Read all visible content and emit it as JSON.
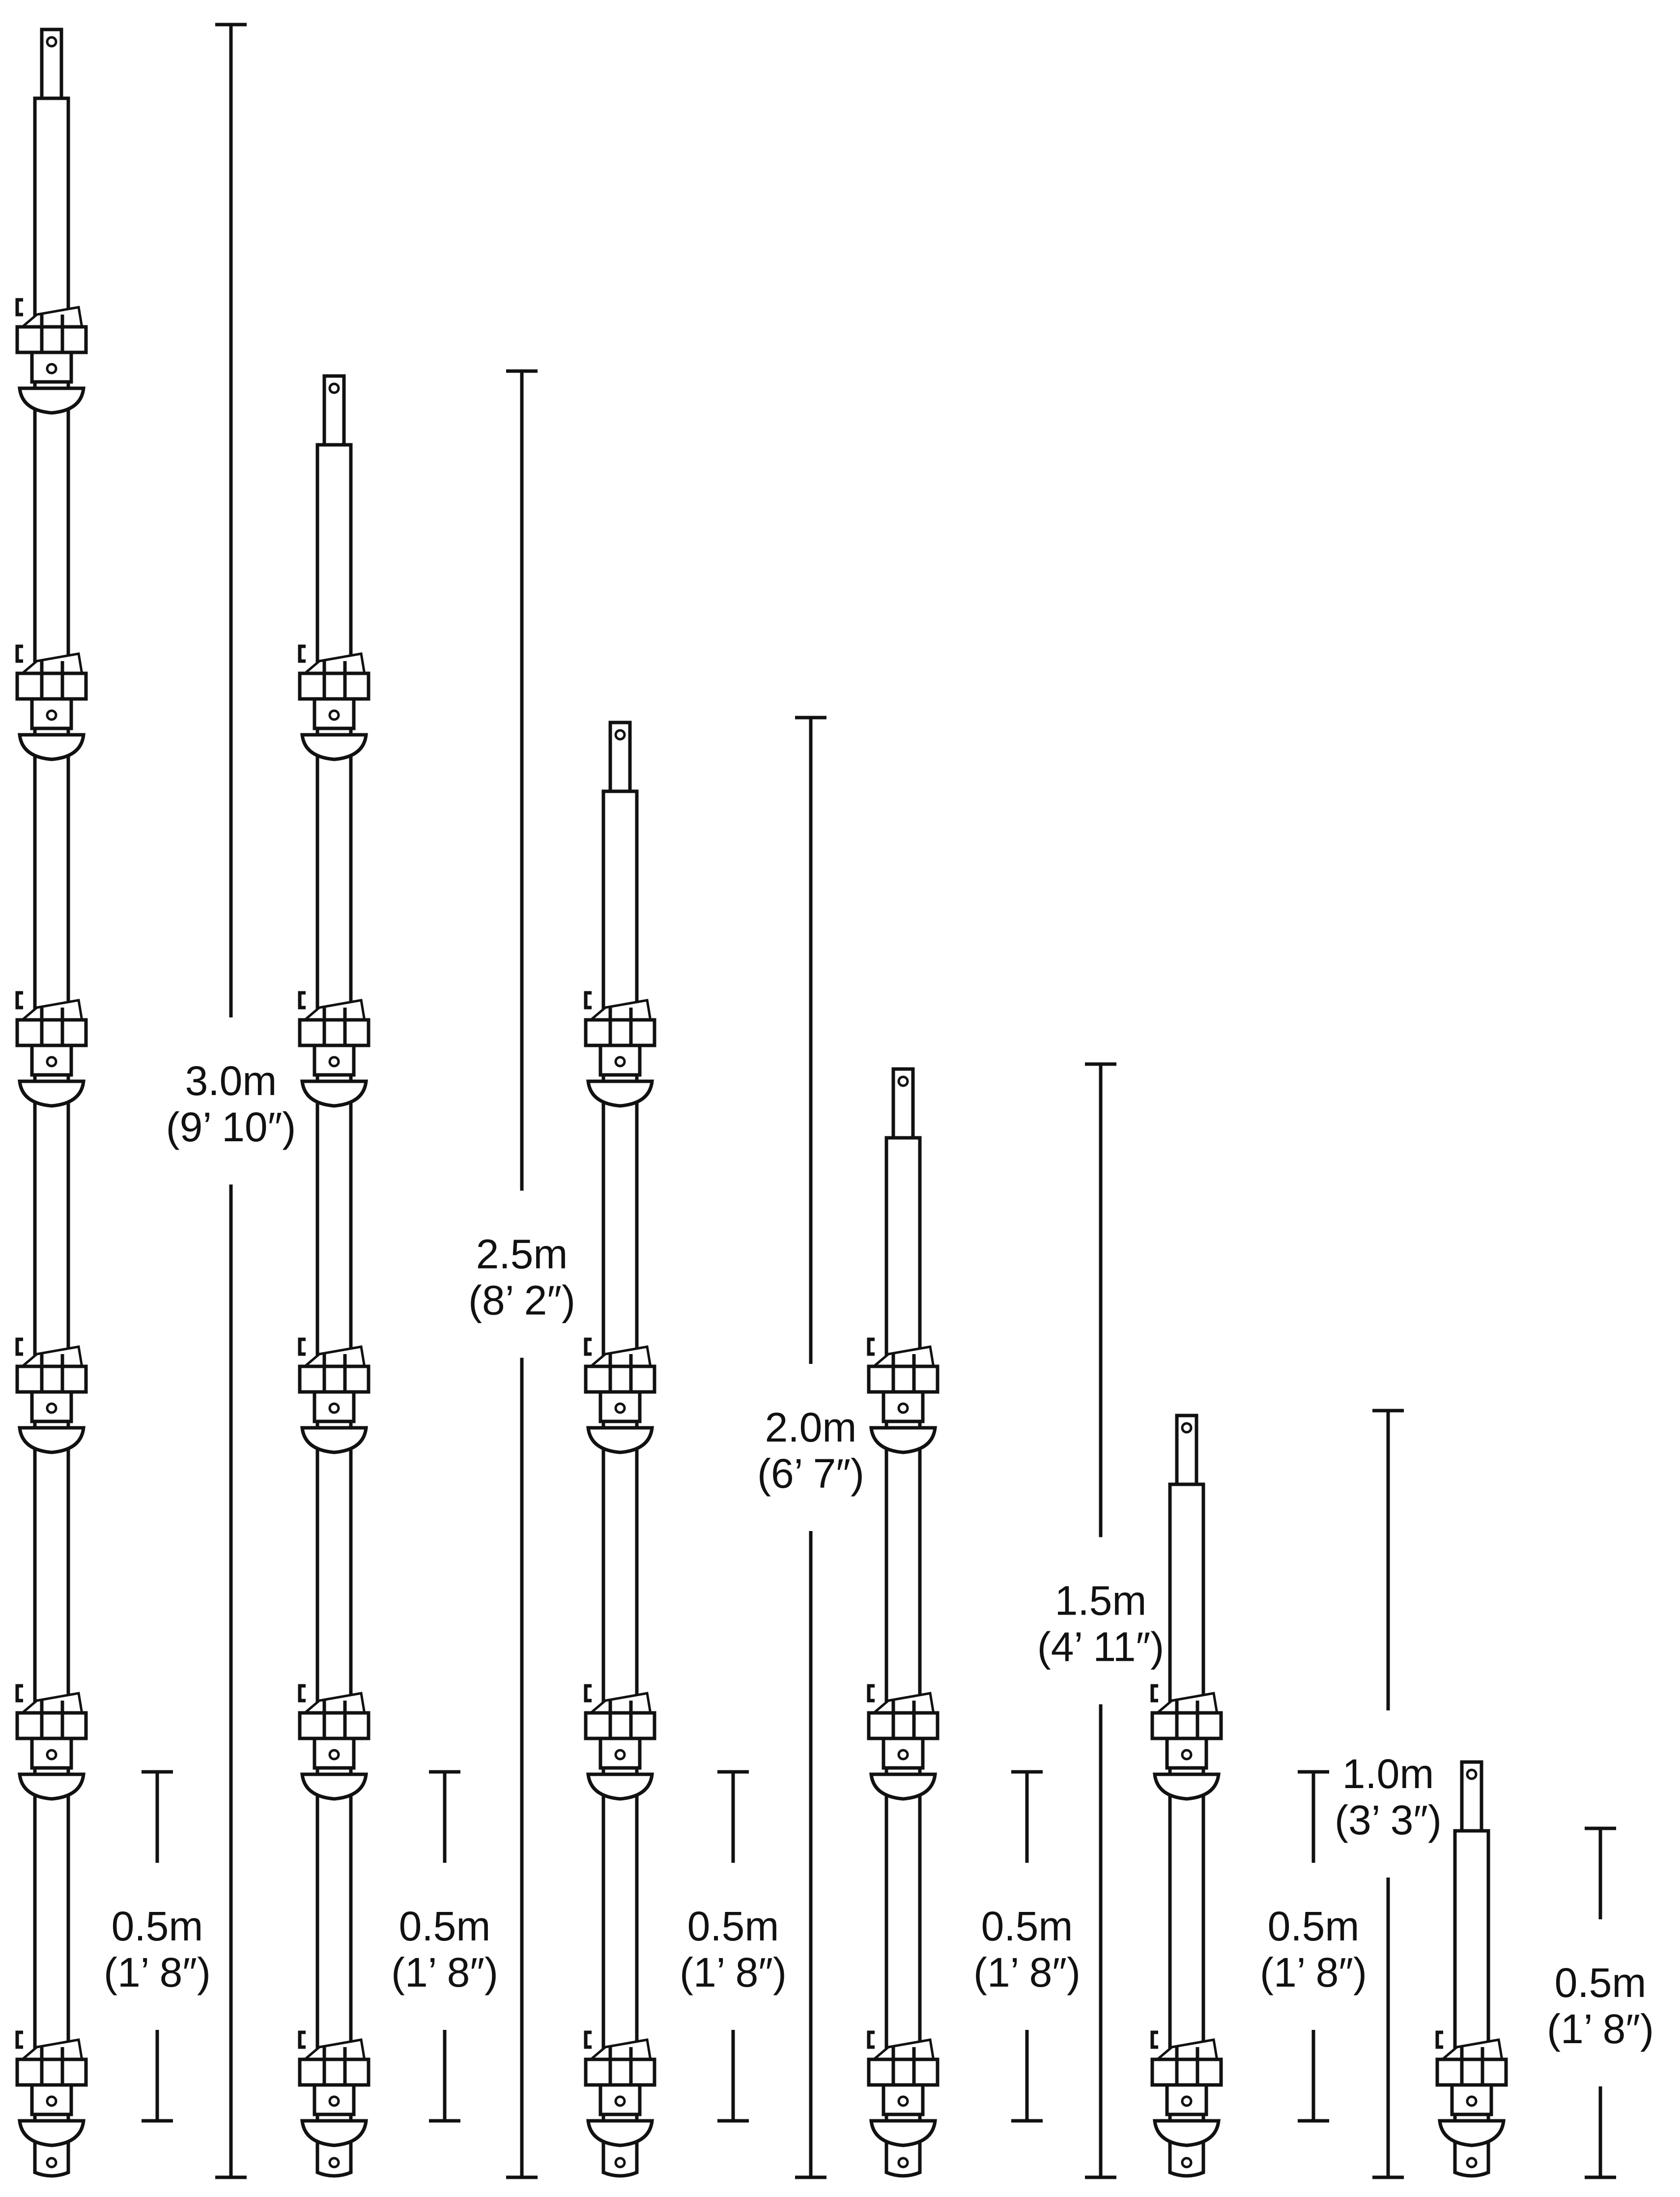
{
  "standards": [
    {
      "metric": "3.0m",
      "imperial": "(9’ 10″)",
      "length_m": 3.0,
      "bottom_ring_metric": "0.5m",
      "bottom_ring_imperial": "(1’ 8″)"
    },
    {
      "metric": "2.5m",
      "imperial": "(8’ 2″)",
      "length_m": 2.5,
      "bottom_ring_metric": "0.5m",
      "bottom_ring_imperial": "(1’ 8″)"
    },
    {
      "metric": "2.0m",
      "imperial": "(6’ 7″)",
      "length_m": 2.0,
      "bottom_ring_metric": "0.5m",
      "bottom_ring_imperial": "(1’ 8″)"
    },
    {
      "metric": "1.5m",
      "imperial": "(4’ 11″)",
      "length_m": 1.5,
      "bottom_ring_metric": "0.5m",
      "bottom_ring_imperial": "(1’ 8″)"
    },
    {
      "metric": "1.0m",
      "imperial": "(3’ 3″)",
      "length_m": 1.0,
      "bottom_ring_metric": "0.5m",
      "bottom_ring_imperial": "(1’ 8″)"
    },
    {
      "metric": "0.5m",
      "imperial": "(1’ 8″)",
      "length_m": 0.5
    }
  ],
  "colors": {
    "line": "#111111",
    "background": "#ffffff"
  }
}
